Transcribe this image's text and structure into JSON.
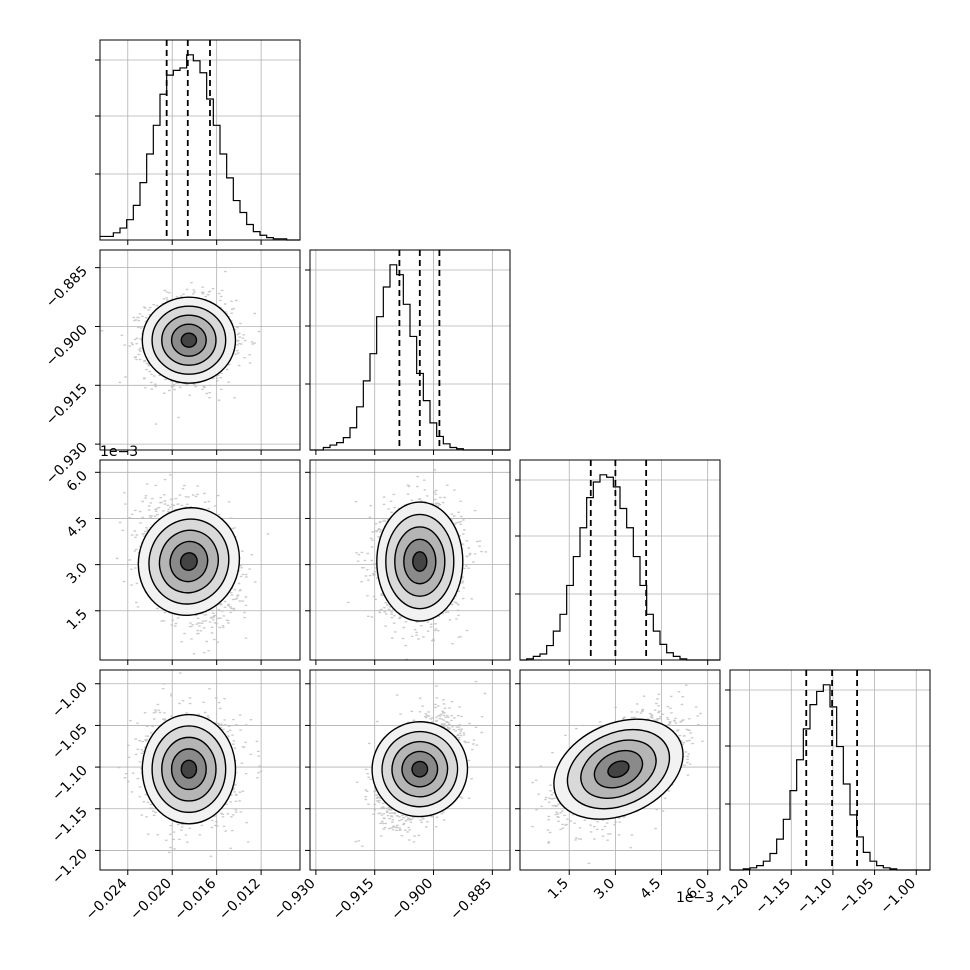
{
  "chart_data": {
    "type": "corner",
    "grid": true,
    "colors": {
      "scatter": "#bdbdbd",
      "hist": "#000000",
      "contour": "#000000",
      "grid": "#b0b0b0"
    },
    "parameters": [
      {
        "id": "p0",
        "mean": -0.0185,
        "quantiles": [
          -0.0205,
          -0.0186,
          -0.0166
        ],
        "range": [
          -0.0265,
          -0.0085
        ],
        "ticks": [
          -0.024,
          -0.02,
          -0.016,
          -0.012
        ],
        "tick_labels": [
          "−0.024",
          "−0.020",
          "−0.016",
          "−0.012"
        ]
      },
      {
        "id": "p1",
        "mean": -0.9035,
        "quantiles": [
          -0.9087,
          -0.9035,
          -0.8985
        ],
        "range": [
          -0.9315,
          -0.8805
        ],
        "ticks": [
          -0.93,
          -0.915,
          -0.9,
          -0.885
        ],
        "tick_labels": [
          "−0.930",
          "−0.915",
          "−0.900",
          "−0.885"
        ]
      },
      {
        "id": "p2",
        "mean": 0.0031,
        "quantiles": [
          0.0022,
          0.003,
          0.004
        ],
        "range": [
          -0.0001,
          0.0064
        ],
        "ticks": [
          0.0015,
          0.003,
          0.0045,
          0.006
        ],
        "tick_labels": [
          "1.5",
          "3.0",
          "4.5",
          "6.0"
        ],
        "offset_label": "1e−3"
      },
      {
        "id": "p3",
        "mean": -1.1025,
        "quantiles": [
          -1.132,
          -1.101,
          -1.071
        ],
        "range": [
          -1.2235,
          -0.9835
        ],
        "ticks": [
          -1.2,
          -1.15,
          -1.1,
          -1.05,
          -1.0
        ],
        "tick_labels": [
          "−1.20",
          "−1.15",
          "−1.10",
          "−1.05",
          "−1.00"
        ]
      }
    ],
    "histograms": [
      {
        "param": "p0",
        "counts": [
          3,
          3,
          6,
          10,
          17,
          29,
          48,
          72,
          96,
          122,
          138,
          142,
          144,
          155,
          150,
          140,
          118,
          96,
          72,
          52,
          33,
          23,
          13,
          7,
          4,
          2,
          1,
          1,
          0,
          0
        ]
      },
      {
        "param": "p1",
        "counts": [
          0,
          0,
          2,
          4,
          6,
          10,
          18,
          35,
          56,
          78,
          108,
          132,
          150,
          142,
          118,
          92,
          62,
          40,
          22,
          11,
          5,
          2,
          1,
          0,
          0,
          0,
          0,
          0,
          0,
          0
        ]
      },
      {
        "param": "p2",
        "counts": [
          0,
          1,
          3,
          5,
          12,
          24,
          38,
          62,
          86,
          110,
          135,
          148,
          154,
          152,
          144,
          126,
          110,
          86,
          62,
          38,
          24,
          13,
          6,
          3,
          1,
          0,
          0,
          0,
          0,
          0
        ]
      },
      {
        "param": "p3",
        "counts": [
          0,
          0,
          1,
          2,
          4,
          8,
          15,
          28,
          46,
          72,
          100,
          128,
          150,
          162,
          168,
          148,
          112,
          78,
          50,
          30,
          16,
          8,
          4,
          2,
          1,
          0,
          0,
          0,
          0,
          0
        ]
      }
    ],
    "pairs": [
      {
        "x": "p1",
        "y": "p0",
        "correlation": 0.0
      },
      {
        "x": "p2",
        "y": "p0",
        "correlation": -0.3
      },
      {
        "x": "p2",
        "y": "p1",
        "correlation": 0.0
      },
      {
        "x": "p3",
        "y": "p0",
        "correlation": 0.0
      },
      {
        "x": "p3",
        "y": "p1",
        "correlation": 0.45
      },
      {
        "x": "p3",
        "y": "p2",
        "correlation": 0.55
      }
    ],
    "xlabel": "",
    "ylabel": ""
  }
}
